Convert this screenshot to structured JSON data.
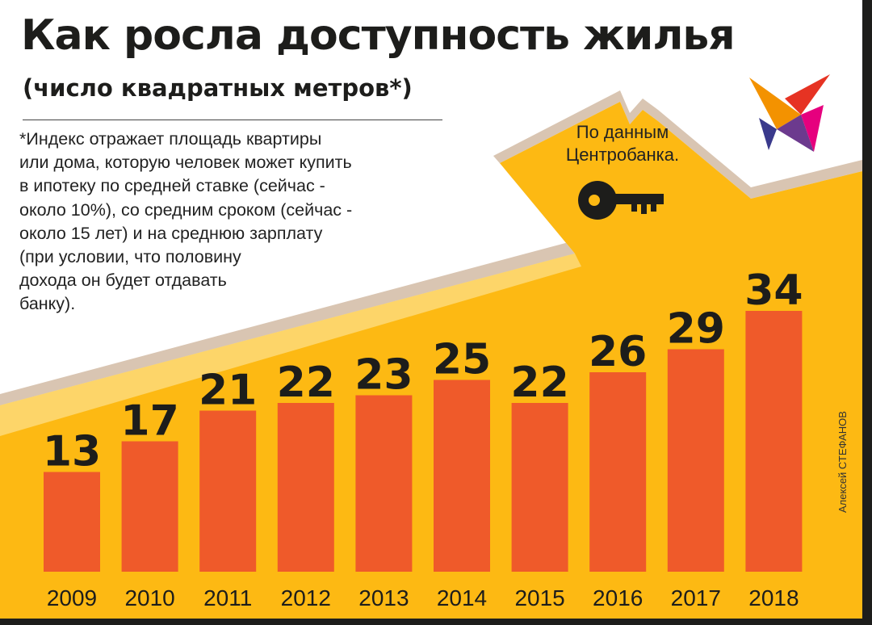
{
  "title": "Как росла доступность жилья",
  "subtitle": "(число квадратных метров*)",
  "footnote_lines": [
    "*Индекс отражает площадь квартиры",
    "или дома, которую человек может купить",
    "в ипотеку по средней ставке (сейчас -",
    "около 10%), со средним сроком (сейчас -",
    "около 15 лет) и на среднюю зарплату",
    "(при условии, что половину",
    "дохода он будет отдавать",
    "банку)."
  ],
  "source_lines": [
    "По данным",
    "Центробанка."
  ],
  "author": "Алексей СТЕФАНОВ",
  "colors": {
    "bar": "#ef5a2a",
    "background_fill": "#fdb913",
    "background_light": "#fde7a3",
    "roof_edge": "#d9c5b2",
    "text": "#1d1d1b",
    "logo_red": "#e63323",
    "logo_orange": "#f39200",
    "logo_purple": "#6c3a8e"
  },
  "icons": [
    "house-roof-icon",
    "key-icon",
    "bird-logo-icon"
  ],
  "chart_data": {
    "type": "bar",
    "categories": [
      "2009",
      "2010",
      "2011",
      "2012",
      "2013",
      "2014",
      "2015",
      "2016",
      "2017",
      "2018"
    ],
    "values": [
      13,
      17,
      21,
      22,
      23,
      25,
      22,
      26,
      29,
      34
    ],
    "title": "Как росла доступность жилья",
    "subtitle": "(число квадратных метров*)",
    "data_labels": true,
    "grid": false,
    "ylim": [
      0,
      34
    ]
  }
}
